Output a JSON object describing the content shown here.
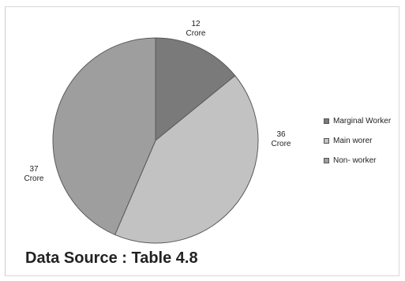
{
  "chart_data": {
    "type": "pie",
    "slices": [
      {
        "label": "Marginal Worker",
        "value": 12,
        "value_label": "12",
        "unit_label": "Crore",
        "color": "#7a7a7a"
      },
      {
        "label": "Main worer",
        "value": 36,
        "value_label": "36",
        "unit_label": "Crore",
        "color": "#c2c2c2"
      },
      {
        "label": "Non- worker",
        "value": 37,
        "value_label": "37",
        "unit_label": "Crore",
        "color": "#9e9e9e"
      }
    ],
    "start_angle_deg": 0,
    "direction": "clockwise",
    "legend_position": "right",
    "slice_border_color": "#5a5a5a"
  },
  "source_text": "Data Source : Table 4.8"
}
